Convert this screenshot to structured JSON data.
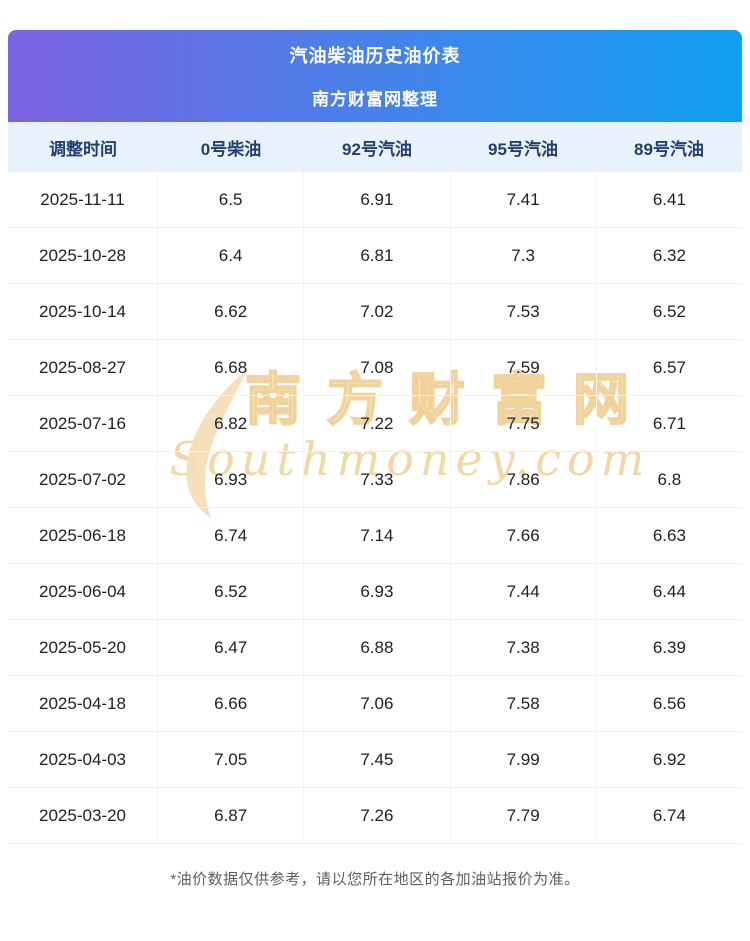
{
  "header": {
    "title": "汽油柴油历史油价表",
    "subtitle": "南方财富网整理"
  },
  "watermark": {
    "brand": "南方财富网",
    "brand_latin": "Southmoney.com"
  },
  "footer": {
    "note": "*油价数据仅供参考，请以您所在地区的各加油站报价为准。"
  },
  "colors": {
    "banner_gradient_start": "#7d63e2",
    "banner_gradient_end": "#10a0f2",
    "banner_text": "#ffffff",
    "column_header_bg": "#e8f1fc",
    "column_header_text": "#24406f",
    "row_text": "#1f1f1f",
    "divider": "#f1f1f1",
    "watermark": "#f0ce94",
    "footer_text": "#5e5e5e"
  },
  "chart_data": {
    "type": "table",
    "title": "汽油柴油历史油价表",
    "subtitle": "南方财富网整理",
    "columns": [
      "调整时间",
      "0号柴油",
      "92号汽油",
      "95号汽油",
      "89号汽油"
    ],
    "rows": [
      [
        "2025-11-11",
        "6.5",
        "6.91",
        "7.41",
        "6.41"
      ],
      [
        "2025-10-28",
        "6.4",
        "6.81",
        "7.3",
        "6.32"
      ],
      [
        "2025-10-14",
        "6.62",
        "7.02",
        "7.53",
        "6.52"
      ],
      [
        "2025-08-27",
        "6.68",
        "7.08",
        "7.59",
        "6.57"
      ],
      [
        "2025-07-16",
        "6.82",
        "7.22",
        "7.75",
        "6.71"
      ],
      [
        "2025-07-02",
        "6.93",
        "7.33",
        "7.86",
        "6.8"
      ],
      [
        "2025-06-18",
        "6.74",
        "7.14",
        "7.66",
        "6.63"
      ],
      [
        "2025-06-04",
        "6.52",
        "6.93",
        "7.44",
        "6.44"
      ],
      [
        "2025-05-20",
        "6.47",
        "6.88",
        "7.38",
        "6.39"
      ],
      [
        "2025-04-18",
        "6.66",
        "7.06",
        "7.58",
        "6.56"
      ],
      [
        "2025-04-03",
        "7.05",
        "7.45",
        "7.99",
        "6.92"
      ],
      [
        "2025-03-20",
        "6.87",
        "7.26",
        "7.79",
        "6.74"
      ]
    ],
    "note": "*油价数据仅供参考，请以您所在地区的各加油站报价为准。"
  }
}
